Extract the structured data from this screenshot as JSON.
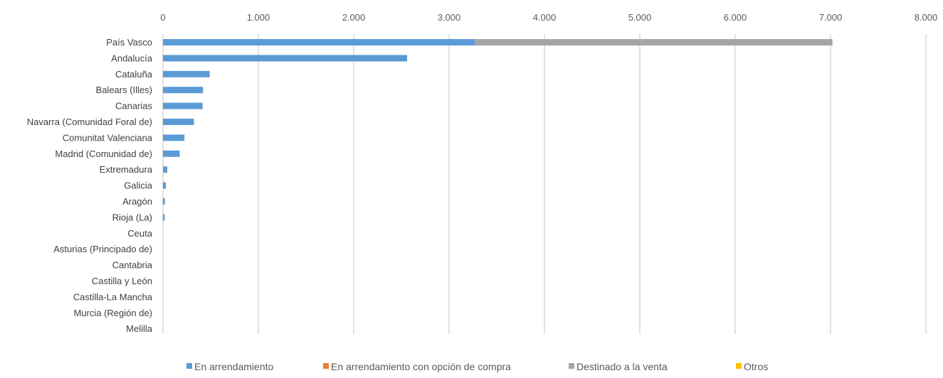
{
  "chart_data": {
    "type": "bar",
    "orientation": "horizontal",
    "stacked": true,
    "categories": [
      "País Vasco",
      "Andalucía",
      "Cataluña",
      "Balears (Illes)",
      "Canarias",
      "Navarra (Comunidad Foral de)",
      "Comunitat Valenciana",
      "Madrid (Comunidad de)",
      "Extremadura",
      "Galicia",
      "Aragón",
      "Rioja (La)",
      "Ceuta",
      "Asturias (Principado de)",
      "Cantabria",
      "Castilla y León",
      "Castilla-La Mancha",
      "Murcia (Región de)",
      "Melilla"
    ],
    "series": [
      {
        "name": "En arrendamiento",
        "color": "#5B9BD5",
        "values": [
          3270,
          2560,
          490,
          420,
          415,
          325,
          225,
          175,
          45,
          30,
          20,
          18,
          0,
          0,
          0,
          0,
          0,
          0,
          0
        ]
      },
      {
        "name": "En arrendamiento con opción de compra",
        "color": "#ED7D31",
        "values": [
          0,
          0,
          0,
          0,
          0,
          0,
          0,
          0,
          0,
          0,
          0,
          0,
          0,
          0,
          0,
          0,
          0,
          0,
          0
        ]
      },
      {
        "name": "Destinado a la venta",
        "color": "#A5A5A5",
        "values": [
          3750,
          0,
          0,
          0,
          0,
          0,
          0,
          0,
          0,
          0,
          0,
          0,
          0,
          0,
          0,
          0,
          0,
          0,
          0
        ]
      },
      {
        "name": "Otros",
        "color": "#FFC000",
        "values": [
          0,
          0,
          0,
          0,
          0,
          0,
          0,
          0,
          0,
          0,
          0,
          0,
          0,
          0,
          0,
          0,
          0,
          0,
          0
        ]
      }
    ],
    "xlim": [
      0,
      8000
    ],
    "x_ticks": [
      0,
      1000,
      2000,
      3000,
      4000,
      5000,
      6000,
      7000,
      8000
    ],
    "x_tick_labels": [
      "0",
      "1.000",
      "2.000",
      "3.000",
      "4.000",
      "5.000",
      "6.000",
      "7.000",
      "8.000"
    ],
    "x_axis_position": "top",
    "grid": true,
    "legend_position": "bottom"
  }
}
